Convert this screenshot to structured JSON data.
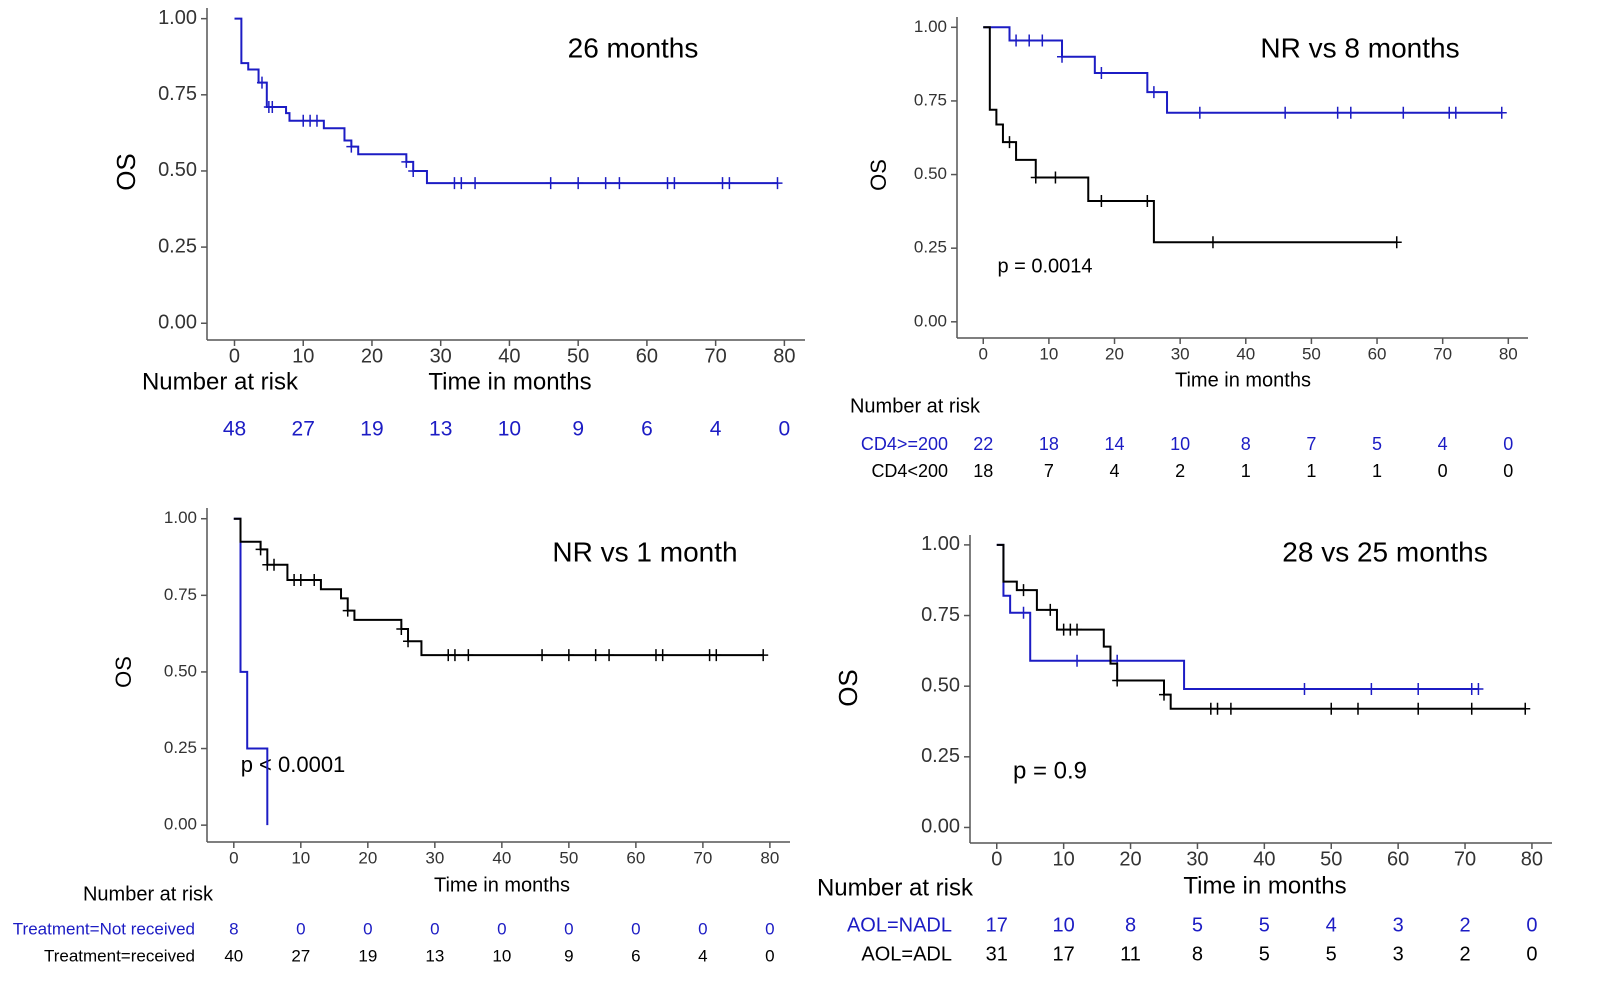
{
  "chart_data": [
    {
      "type": "step",
      "title": "26 months",
      "y_label": "OS",
      "x_label": "Time in months",
      "risk_title": "Number at risk",
      "xlim": [
        -4,
        83
      ],
      "ylim": [
        -0.055,
        1.035
      ],
      "xticks": [
        0,
        10,
        20,
        30,
        40,
        50,
        60,
        70,
        80
      ],
      "yticks": [
        {
          "value": 0,
          "label": "0.00"
        },
        {
          "value": 0.25,
          "label": "0.25"
        },
        {
          "value": 0.5,
          "label": "0.50"
        },
        {
          "value": 0.75,
          "label": "0.75"
        },
        {
          "value": 1,
          "label": "1.00"
        }
      ],
      "series": [
        {
          "color": "#1c1cc4",
          "x": [
            0,
            1,
            2,
            3.5,
            4.7,
            7.5,
            8,
            13,
            16,
            17,
            18,
            25,
            26,
            28,
            79
          ],
          "values": [
            1,
            0.854,
            0.833,
            0.79,
            0.71,
            0.69,
            0.665,
            0.64,
            0.6,
            0.58,
            0.555,
            0.53,
            0.5,
            0.46,
            0.46
          ],
          "censored": [
            4,
            5,
            5.5,
            10,
            11,
            12,
            17,
            25,
            26,
            32,
            33,
            35,
            46,
            50,
            54,
            56,
            63,
            64,
            71,
            72,
            79
          ],
          "at_risk": [
            48,
            27,
            19,
            13,
            10,
            9,
            6,
            4,
            0
          ]
        }
      ]
    },
    {
      "type": "step",
      "title": "NR vs 8 months",
      "y_label": "OS",
      "x_label": "Time in months",
      "risk_title": "Number at risk",
      "annotation": "p = 0.0014",
      "xlim": [
        -4,
        83
      ],
      "ylim": [
        -0.055,
        1.035
      ],
      "xticks": [
        0,
        10,
        20,
        30,
        40,
        50,
        60,
        70,
        80
      ],
      "yticks": [
        {
          "value": 0,
          "label": "0.00"
        },
        {
          "value": 0.25,
          "label": "0.25"
        },
        {
          "value": 0.5,
          "label": "0.50"
        },
        {
          "value": 0.75,
          "label": "0.75"
        },
        {
          "value": 1,
          "label": "1.00"
        }
      ],
      "series": [
        {
          "name": "CD4>=200",
          "color": "#1c1cc4",
          "x": [
            0,
            4,
            12,
            17,
            25,
            28,
            79
          ],
          "values": [
            1,
            0.955,
            0.9,
            0.845,
            0.78,
            0.71,
            0.71
          ],
          "censored": [
            5,
            7,
            9,
            12,
            18,
            26,
            33,
            46,
            54,
            56,
            64,
            71,
            72,
            79
          ],
          "at_risk": [
            22,
            18,
            14,
            10,
            8,
            7,
            5,
            4,
            0
          ]
        },
        {
          "name": "CD4<200",
          "color": "#000000",
          "x": [
            0,
            1,
            2,
            3,
            5,
            8,
            16,
            26,
            63
          ],
          "values": [
            1,
            0.72,
            0.67,
            0.61,
            0.55,
            0.49,
            0.41,
            0.27,
            0.27
          ],
          "censored": [
            4,
            8,
            11,
            18,
            25,
            35,
            63
          ],
          "at_risk": [
            18,
            7,
            4,
            2,
            1,
            1,
            1,
            0,
            0
          ]
        }
      ]
    },
    {
      "type": "step",
      "title": "NR vs 1 month",
      "y_label": "OS",
      "x_label": "Time in months",
      "risk_title": "Number at risk",
      "annotation": "p < 0.0001",
      "xlim": [
        -4,
        83
      ],
      "ylim": [
        -0.055,
        1.035
      ],
      "xticks": [
        0,
        10,
        20,
        30,
        40,
        50,
        60,
        70,
        80
      ],
      "yticks": [
        {
          "value": 0,
          "label": "0.00"
        },
        {
          "value": 0.25,
          "label": "0.25"
        },
        {
          "value": 0.5,
          "label": "0.50"
        },
        {
          "value": 0.75,
          "label": "0.75"
        },
        {
          "value": 1,
          "label": "1.00"
        }
      ],
      "series": [
        {
          "name": "Treatment=Not received",
          "color": "#1c1cc4",
          "x": [
            0,
            1,
            2,
            5
          ],
          "values": [
            1,
            0.5,
            0.25,
            0
          ],
          "censored": [],
          "at_risk": [
            8,
            0,
            0,
            0,
            0,
            0,
            0,
            0,
            0
          ]
        },
        {
          "name": "Treatment=received",
          "color": "#000000",
          "x": [
            0,
            1,
            4,
            5,
            8,
            13,
            16,
            17,
            18,
            25,
            26,
            28,
            79
          ],
          "values": [
            1,
            0.925,
            0.9,
            0.85,
            0.8,
            0.77,
            0.74,
            0.7,
            0.67,
            0.64,
            0.6,
            0.555,
            0.555
          ],
          "censored": [
            4,
            5,
            6,
            9,
            10,
            12,
            17,
            25,
            26,
            32,
            33,
            35,
            46,
            50,
            54,
            56,
            63,
            64,
            71,
            72,
            79
          ],
          "at_risk": [
            40,
            27,
            19,
            13,
            10,
            9,
            6,
            4,
            0
          ]
        }
      ]
    },
    {
      "type": "step",
      "title": "28 vs 25 months",
      "y_label": "OS",
      "x_label": "Time in months",
      "risk_title": "Number at risk",
      "annotation": "p = 0.9",
      "xlim": [
        -4,
        83
      ],
      "ylim": [
        -0.055,
        1.035
      ],
      "xticks": [
        0,
        10,
        20,
        30,
        40,
        50,
        60,
        70,
        80
      ],
      "yticks": [
        {
          "value": 0,
          "label": "0.00"
        },
        {
          "value": 0.25,
          "label": "0.25"
        },
        {
          "value": 0.5,
          "label": "0.50"
        },
        {
          "value": 0.75,
          "label": "0.75"
        },
        {
          "value": 1,
          "label": "1.00"
        }
      ],
      "series": [
        {
          "name": "AOL=NADL",
          "color": "#1c1cc4",
          "x": [
            0,
            1,
            2,
            5,
            28,
            72
          ],
          "values": [
            1,
            0.82,
            0.76,
            0.59,
            0.49,
            0.49
          ],
          "censored": [
            4,
            12,
            18,
            46,
            56,
            63,
            71,
            72
          ],
          "at_risk": [
            17,
            10,
            8,
            5,
            5,
            4,
            3,
            2,
            0
          ]
        },
        {
          "name": "AOL=ADL",
          "color": "#000000",
          "x": [
            0,
            1,
            3,
            6,
            9,
            16,
            17,
            18,
            25,
            26,
            79
          ],
          "values": [
            1,
            0.87,
            0.84,
            0.77,
            0.7,
            0.64,
            0.58,
            0.52,
            0.47,
            0.42,
            0.42
          ],
          "censored": [
            4,
            8,
            10,
            11,
            12,
            18,
            25,
            32,
            33,
            35,
            50,
            54,
            63,
            71,
            79
          ],
          "at_risk": [
            31,
            17,
            11,
            8,
            5,
            5,
            3,
            2,
            0
          ]
        }
      ]
    }
  ]
}
